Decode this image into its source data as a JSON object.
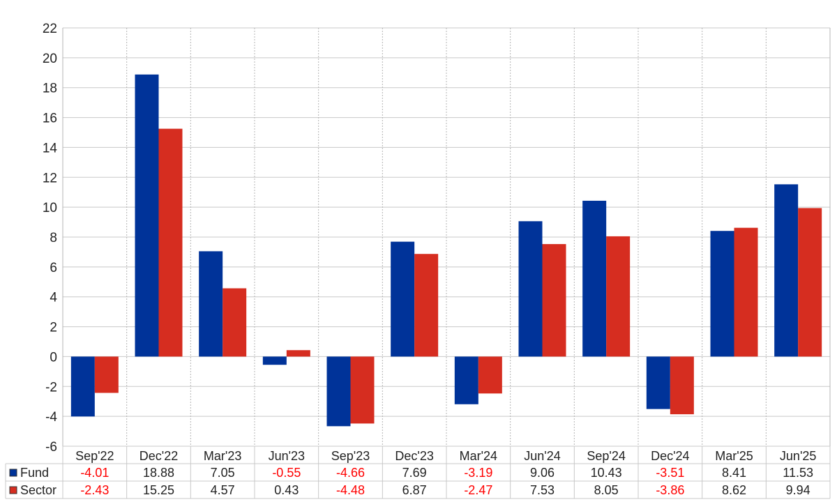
{
  "chart_data": {
    "type": "bar",
    "categories": [
      "Sep'22",
      "Dec'22",
      "Mar'23",
      "Jun'23",
      "Sep'23",
      "Dec'23",
      "Mar'24",
      "Jun'24",
      "Sep'24",
      "Dec'24",
      "Mar'25",
      "Jun'25"
    ],
    "series": [
      {
        "name": "Fund",
        "color": "#003399",
        "values": [
          -4.01,
          18.88,
          7.05,
          -0.55,
          -4.66,
          7.69,
          -3.19,
          9.06,
          10.43,
          -3.51,
          8.41,
          11.53
        ],
        "labels": [
          "-4.01",
          "18.88",
          "7.05",
          "-0.55",
          "-4.66",
          "7.69",
          "-3.19",
          "9.06",
          "10.43",
          "-3.51",
          "8.41",
          "11.53"
        ]
      },
      {
        "name": "Sector",
        "color": "#d62d20",
        "values": [
          -2.43,
          15.25,
          4.57,
          0.43,
          -4.48,
          6.87,
          -2.47,
          7.53,
          8.05,
          -3.86,
          8.62,
          9.94
        ],
        "labels": [
          "-2.43",
          "15.25",
          "4.57",
          "0.43",
          "-4.48",
          "6.87",
          "-2.47",
          "7.53",
          "8.05",
          "-3.86",
          "8.62",
          "9.94"
        ]
      }
    ],
    "ylim": [
      -6,
      22
    ],
    "yticks": [
      -6,
      -4,
      -2,
      0,
      2,
      4,
      6,
      8,
      10,
      12,
      14,
      16,
      18,
      20,
      22
    ],
    "ytick_labels": [
      "-6",
      "-4",
      "-2",
      "0",
      "2",
      "4",
      "6",
      "8",
      "10",
      "12",
      "14",
      "16",
      "18",
      "20",
      "22"
    ],
    "grid": true,
    "legend": "data-table-below",
    "negative_label_color": "#ff0000",
    "title": "",
    "xlabel": "",
    "ylabel": ""
  }
}
